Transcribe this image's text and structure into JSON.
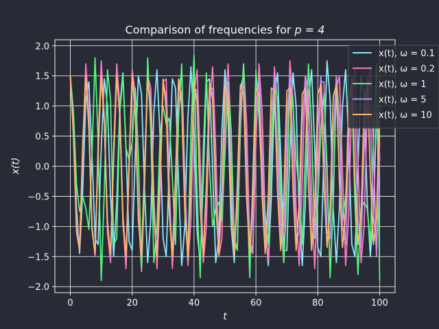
{
  "chart_data": {
    "type": "line",
    "title": "Comparison of frequencies for p = 4",
    "title_prefix": "Comparison of frequencies for ",
    "title_math": "p = 4",
    "xlabel": "t",
    "ylabel": "x(t)",
    "xlim": [
      -5,
      105
    ],
    "ylim": [
      -2.1,
      2.1
    ],
    "xticks": [
      0,
      20,
      40,
      60,
      80,
      100
    ],
    "xtick_labels": [
      "0",
      "20",
      "40",
      "60",
      "80",
      "100"
    ],
    "yticks": [
      2.0,
      1.5,
      1.0,
      0.5,
      0.0,
      -0.5,
      -1.0,
      -1.5,
      -2.0
    ],
    "ytick_labels": [
      "2.0",
      "1.5",
      "1.0",
      "0.5",
      "0.0",
      "−0.5",
      "−1.0",
      "−1.5",
      "−2.0"
    ],
    "grid": true,
    "legend_position": "top-right",
    "background": "#282a36",
    "series": [
      {
        "name": "x(t), ω = 0.1",
        "omega": 0.1,
        "color": "#8be9fd",
        "x": [
          0,
          1,
          2,
          3,
          4,
          5,
          6,
          7,
          8,
          9,
          10,
          11,
          12,
          13,
          14,
          15,
          16,
          17,
          18,
          19,
          20,
          21,
          22,
          23,
          24,
          25,
          26,
          27,
          28,
          29,
          30,
          31,
          32,
          33,
          34,
          35,
          36,
          37,
          38,
          39,
          40,
          41,
          42,
          43,
          44,
          45,
          46,
          47,
          48,
          49,
          50,
          51,
          52,
          53,
          54,
          55,
          56,
          57,
          58,
          59,
          60,
          61,
          62,
          63,
          64,
          65,
          66,
          67,
          68,
          69,
          70,
          71,
          72,
          73,
          74,
          75,
          76,
          77,
          78,
          79,
          80,
          81,
          82,
          83,
          84,
          85,
          86,
          87,
          88,
          89,
          90,
          91,
          92,
          93,
          94,
          95,
          96,
          97,
          98,
          99,
          100
        ],
        "y": [
          1.5,
          0.8,
          -0.7,
          -1.45,
          -0.4,
          1.1,
          1.4,
          0.2,
          -1.2,
          -1.3,
          0.3,
          1.45,
          1.0,
          -0.5,
          -1.5,
          -0.6,
          1.0,
          1.55,
          0.3,
          -1.25,
          -1.4,
          0.2,
          1.5,
          1.2,
          -0.4,
          -1.6,
          -0.9,
          0.9,
          1.6,
          0.5,
          -1.2,
          -1.5,
          0.0,
          1.45,
          1.3,
          -0.3,
          -1.65,
          -1.0,
          0.8,
          1.65,
          0.6,
          -1.1,
          -1.6,
          -0.2,
          1.4,
          1.45,
          -0.1,
          -1.6,
          -1.2,
          0.6,
          1.6,
          0.8,
          -1.0,
          -1.6,
          -0.3,
          1.3,
          1.5,
          0.1,
          -1.5,
          -1.3,
          0.5,
          1.6,
          0.9,
          -0.9,
          -1.65,
          -0.5,
          1.2,
          1.55,
          0.2,
          -1.4,
          -1.4,
          0.3,
          1.55,
          1.0,
          -0.8,
          -1.65,
          -0.6,
          1.1,
          1.6,
          0.3,
          -1.35,
          -1.5,
          0.2,
          1.75,
          1.1,
          -0.7,
          -1.6,
          -0.7,
          1.0,
          1.6,
          0.4,
          -1.3,
          -1.5,
          0.0,
          1.5,
          1.2,
          -0.6,
          -1.5,
          -0.8,
          0.9,
          0.1
        ]
      },
      {
        "name": "x(t), ω = 0.2",
        "omega": 0.2,
        "color": "#ff79c6",
        "x": [
          0,
          1,
          2,
          3,
          4,
          5,
          6,
          7,
          8,
          9,
          10,
          11,
          12,
          13,
          14,
          15,
          16,
          17,
          18,
          19,
          20,
          21,
          22,
          23,
          24,
          25,
          26,
          27,
          28,
          29,
          30,
          31,
          32,
          33,
          34,
          35,
          36,
          37,
          38,
          39,
          40,
          41,
          42,
          43,
          44,
          45,
          46,
          47,
          48,
          49,
          50,
          51,
          52,
          53,
          54,
          55,
          56,
          57,
          58,
          59,
          60,
          61,
          62,
          63,
          64,
          65,
          66,
          67,
          68,
          69,
          70,
          71,
          72,
          73,
          74,
          75,
          76,
          77,
          78,
          79,
          80,
          81,
          82,
          83,
          84,
          85,
          86,
          87,
          88,
          89,
          90,
          91,
          92,
          93,
          94,
          95,
          96,
          97,
          98,
          99,
          100
        ],
        "y": [
          1.5,
          0.7,
          -0.9,
          -1.4,
          0.2,
          1.7,
          0.9,
          -1.0,
          -1.5,
          0.4,
          1.75,
          0.8,
          -1.1,
          -1.6,
          0.3,
          1.7,
          1.0,
          -0.9,
          -1.7,
          -0.1,
          1.6,
          1.2,
          -0.7,
          -1.75,
          -0.3,
          1.5,
          1.3,
          -0.5,
          -1.7,
          -0.5,
          1.4,
          1.45,
          -0.3,
          -1.7,
          -0.7,
          1.3,
          1.55,
          -0.1,
          -1.65,
          -0.9,
          1.2,
          1.6,
          0.1,
          -1.6,
          -1.0,
          1.0,
          1.65,
          0.3,
          -1.5,
          -1.2,
          0.8,
          1.7,
          0.5,
          -1.4,
          -1.3,
          0.6,
          1.7,
          0.7,
          -1.3,
          -1.45,
          0.4,
          1.7,
          0.9,
          -1.1,
          -1.55,
          0.2,
          1.65,
          1.0,
          -0.9,
          -1.6,
          0.0,
          1.75,
          1.1,
          -0.7,
          -1.65,
          -0.2,
          1.5,
          1.25,
          -0.5,
          -1.7,
          -0.4,
          1.4,
          1.4,
          -0.3,
          -1.7,
          -0.6,
          1.3,
          1.5,
          -0.1,
          -1.65,
          -0.8,
          1.2,
          1.6,
          0.1,
          -1.6,
          -1.0,
          1.0,
          1.65,
          0.3,
          -1.5,
          0.4
        ]
      },
      {
        "name": "x(t), ω = 1",
        "omega": 1,
        "color": "#50fa7b",
        "x": [
          0,
          1,
          2,
          3,
          4,
          5,
          6,
          7,
          8,
          9,
          10,
          11,
          12,
          13,
          14,
          15,
          16,
          17,
          18,
          19,
          20,
          21,
          22,
          23,
          24,
          25,
          26,
          27,
          28,
          29,
          30,
          31,
          32,
          33,
          34,
          35,
          36,
          37,
          38,
          39,
          40,
          41,
          42,
          43,
          44,
          45,
          46,
          47,
          48,
          49,
          50,
          51,
          52,
          53,
          54,
          55,
          56,
          57,
          58,
          59,
          60,
          61,
          62,
          63,
          64,
          65,
          66,
          67,
          68,
          69,
          70,
          71,
          72,
          73,
          74,
          75,
          76,
          77,
          78,
          79,
          80,
          81,
          82,
          83,
          84,
          85,
          86,
          87,
          88,
          89,
          90,
          91,
          92,
          93,
          94,
          95,
          96,
          97,
          98,
          99,
          100
        ],
        "y": [
          1.5,
          0.9,
          -0.3,
          -0.75,
          -0.5,
          -0.7,
          -1.05,
          0.2,
          1.8,
          0.4,
          -1.9,
          -0.4,
          1.6,
          1.1,
          -1.3,
          -1.2,
          0.9,
          1.5,
          0.3,
          0.1,
          0.4,
          1.3,
          0.2,
          -1.7,
          -0.3,
          1.8,
          0.6,
          -1.6,
          -1.0,
          0.5,
          1.0,
          0.7,
          0.8,
          -0.2,
          -1.3,
          0.8,
          1.7,
          -0.4,
          -1.55,
          0.6,
          1.85,
          -0.5,
          -1.85,
          0.3,
          1.55,
          0.0,
          -1.0,
          -0.7,
          -0.6,
          -0.9,
          0.2,
          1.4,
          0.6,
          -1.2,
          -1.4,
          0.8,
          1.7,
          -0.2,
          -1.85,
          -0.2,
          1.6,
          0.8,
          -0.3,
          -0.8,
          -1.3,
          0.3,
          1.4,
          1.1,
          -0.4,
          -1.6,
          -0.5,
          1.4,
          1.0,
          0.1,
          -0.4,
          -1.3,
          0.2,
          1.7,
          0.6,
          -1.2,
          -0.6,
          0.6,
          1.2,
          0.0,
          -1.85,
          -0.6,
          1.5,
          0.8,
          -0.9,
          -0.5,
          0.5,
          1.3,
          -0.6,
          -1.8,
          -0.7,
          -0.6,
          -0.7,
          -1.3,
          0.4,
          1.7,
          -1.9
        ]
      },
      {
        "name": "x(t), ω = 5",
        "omega": 5,
        "color": "#bd93f9",
        "x": [
          0,
          1,
          2,
          3,
          4,
          5,
          6,
          7,
          8,
          9,
          10,
          11,
          12,
          13,
          14,
          15,
          16,
          17,
          18,
          19,
          20,
          21,
          22,
          23,
          24,
          25,
          26,
          27,
          28,
          29,
          30,
          31,
          32,
          33,
          34,
          35,
          36,
          37,
          38,
          39,
          40,
          41,
          42,
          43,
          44,
          45,
          46,
          47,
          48,
          49,
          50,
          51,
          52,
          53,
          54,
          55,
          56,
          57,
          58,
          59,
          60,
          61,
          62,
          63,
          64,
          65,
          66,
          67,
          68,
          69,
          70,
          71,
          72,
          73,
          74,
          75,
          76,
          77,
          78,
          79,
          80,
          81,
          82,
          83,
          84,
          85,
          86,
          87,
          88,
          89,
          90,
          91,
          92,
          93,
          94,
          95,
          96,
          97,
          98,
          99,
          100
        ],
        "y": [
          1.5,
          0.6,
          -1.0,
          -1.4,
          0.3,
          1.5,
          0.7,
          -1.0,
          -1.45,
          0.2,
          1.5,
          0.8,
          -0.9,
          -1.5,
          0.1,
          1.5,
          0.9,
          -0.8,
          -1.5,
          0.0,
          1.45,
          1.0,
          -0.7,
          -1.5,
          -0.1,
          1.45,
          1.1,
          -0.6,
          -1.5,
          -0.2,
          1.4,
          1.15,
          -0.5,
          -1.5,
          -0.3,
          1.35,
          1.2,
          -0.4,
          -1.45,
          -0.4,
          1.3,
          1.25,
          -0.3,
          -1.45,
          -0.5,
          1.25,
          1.3,
          -0.2,
          -1.45,
          -0.6,
          1.2,
          1.35,
          -0.1,
          -1.4,
          -0.7,
          1.1,
          1.4,
          0.0,
          -1.4,
          -0.8,
          1.0,
          1.45,
          0.1,
          -1.35,
          -0.9,
          0.9,
          1.45,
          0.2,
          -1.3,
          -1.0,
          0.8,
          1.5,
          0.3,
          -1.25,
          -1.1,
          0.7,
          1.5,
          0.4,
          -1.2,
          -1.15,
          0.6,
          1.5,
          0.5,
          -1.1,
          -1.2,
          0.5,
          1.5,
          0.6,
          -1.0,
          -1.3,
          0.4,
          1.5,
          0.7,
          -0.9,
          -1.35,
          0.3,
          1.5,
          0.8,
          -0.8,
          -1.4,
          0.2
        ]
      },
      {
        "name": "x(t), ω = 10",
        "omega": 10,
        "color": "#ffb86c",
        "x": [
          0,
          1,
          2,
          3,
          4,
          5,
          6,
          7,
          8,
          9,
          10,
          11,
          12,
          13,
          14,
          15,
          16,
          17,
          18,
          19,
          20,
          21,
          22,
          23,
          24,
          25,
          26,
          27,
          28,
          29,
          30,
          31,
          32,
          33,
          34,
          35,
          36,
          37,
          38,
          39,
          40,
          41,
          42,
          43,
          44,
          45,
          46,
          47,
          48,
          49,
          50,
          51,
          52,
          53,
          54,
          55,
          56,
          57,
          58,
          59,
          60,
          61,
          62,
          63,
          64,
          65,
          66,
          67,
          68,
          69,
          70,
          71,
          72,
          73,
          74,
          75,
          76,
          77,
          78,
          79,
          80,
          81,
          82,
          83,
          84,
          85,
          86,
          87,
          88,
          89,
          90,
          91,
          92,
          93,
          94,
          95,
          96,
          97,
          98,
          99,
          100
        ],
        "y": [
          1.5,
          0.5,
          -1.1,
          -1.4,
          0.4,
          1.5,
          0.6,
          -1.05,
          -1.45,
          0.3,
          1.5,
          0.7,
          -1.0,
          -1.45,
          0.2,
          1.5,
          0.8,
          -0.95,
          -1.5,
          0.1,
          1.5,
          0.85,
          -0.9,
          -1.5,
          0.0,
          1.45,
          0.9,
          -0.85,
          -1.5,
          -0.1,
          1.45,
          0.95,
          -0.8,
          -1.5,
          -0.15,
          1.45,
          1.0,
          -0.75,
          -1.5,
          -0.2,
          1.4,
          1.05,
          -0.7,
          -1.5,
          -0.3,
          1.4,
          1.1,
          -0.65,
          -1.45,
          -0.35,
          1.35,
          1.15,
          -0.6,
          -1.45,
          -0.4,
          1.35,
          1.2,
          -0.55,
          -1.45,
          -0.45,
          1.3,
          1.2,
          -0.5,
          -1.45,
          -0.5,
          1.3,
          1.25,
          -0.45,
          -1.4,
          -0.55,
          1.25,
          1.3,
          -0.4,
          -1.4,
          -0.6,
          1.2,
          1.3,
          -0.35,
          -1.4,
          -0.65,
          1.2,
          1.35,
          -0.3,
          -1.35,
          -0.7,
          1.15,
          1.35,
          -0.25,
          -1.35,
          -0.75,
          1.1,
          1.4,
          -0.2,
          -1.3,
          -0.8,
          1.05,
          1.4,
          -0.15,
          -1.3,
          -0.85,
          1.0
        ]
      }
    ]
  }
}
